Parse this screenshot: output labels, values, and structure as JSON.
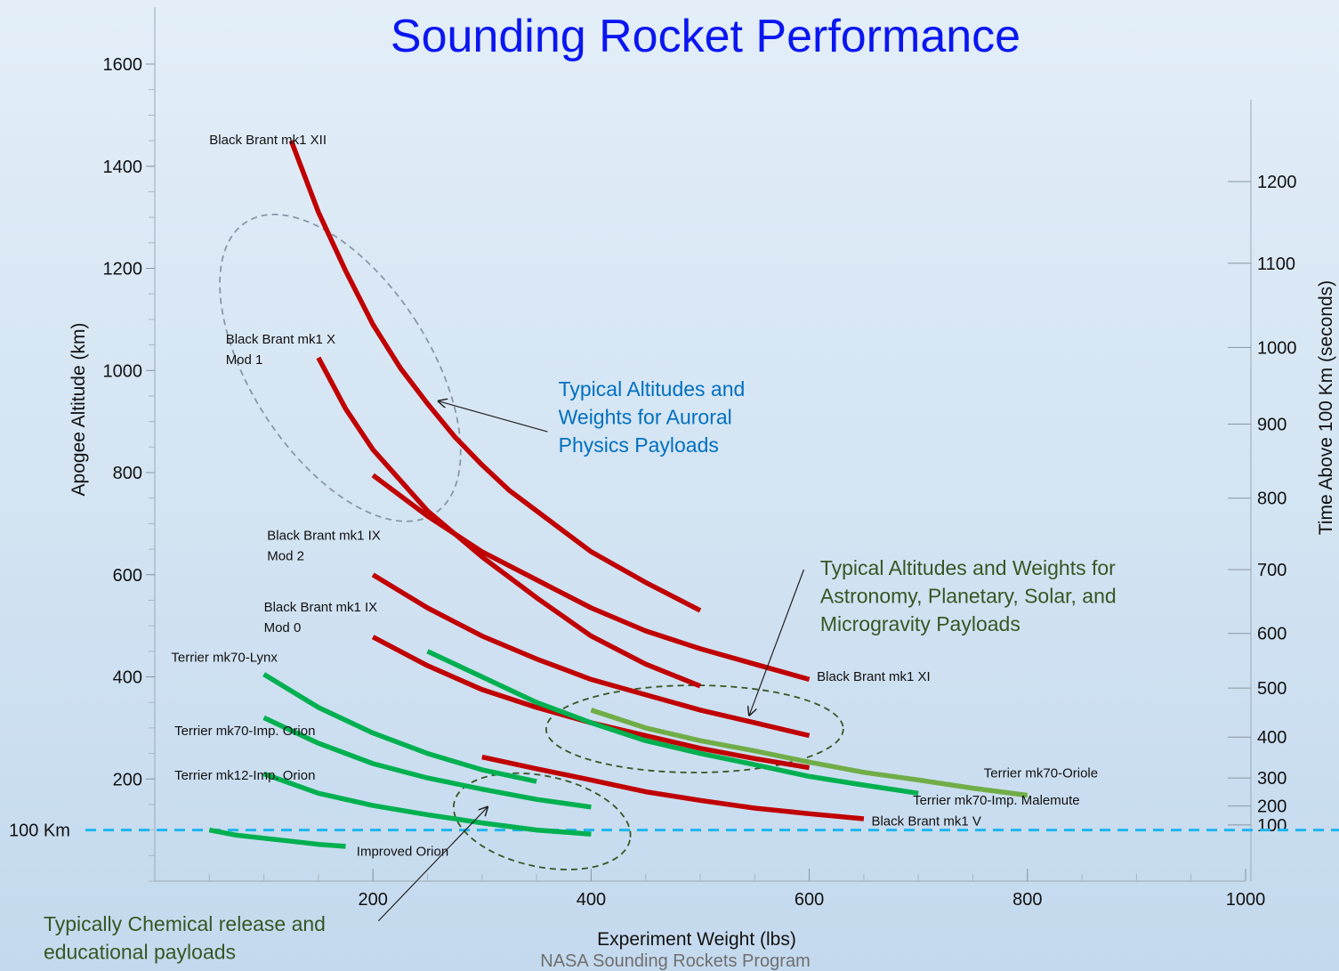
{
  "chart_data": {
    "type": "line",
    "title": "Sounding Rocket Performance",
    "xlabel": "Experiment Weight (lbs)",
    "ylabel": "Apogee Altitude (km)",
    "y2label": "Time Above 100 Km (seconds)",
    "xlim": [
      0,
      1000
    ],
    "ylim": [
      0,
      1600
    ],
    "x_ticks": [
      200,
      400,
      600,
      800,
      1000
    ],
    "y_ticks": [
      200,
      400,
      600,
      800,
      1000,
      1200,
      1400,
      1600
    ],
    "y2_ticks": [
      {
        "label": "1200",
        "altitude": 1370
      },
      {
        "label": "1100",
        "altitude": 1210
      },
      {
        "label": "1000",
        "altitude": 1045
      },
      {
        "label": "900",
        "altitude": 895
      },
      {
        "label": "800",
        "altitude": 750
      },
      {
        "label": "700",
        "altitude": 610
      },
      {
        "label": "600",
        "altitude": 485
      },
      {
        "label": "500",
        "altitude": 378
      },
      {
        "label": "400",
        "altitude": 282
      },
      {
        "label": "300",
        "altitude": 202
      },
      {
        "label": "200",
        "altitude": 147
      },
      {
        "label": "100",
        "altitude": 110
      }
    ],
    "reference_line": {
      "label": "100 Km",
      "altitude": 100,
      "color": "#1eb4ee"
    },
    "series": [
      {
        "name": "Black Brant mk1 XII",
        "color": "#c00000",
        "label_at": [
          50,
          1443
        ],
        "points": [
          [
            125,
            1450
          ],
          [
            150,
            1310
          ],
          [
            175,
            1195
          ],
          [
            200,
            1090
          ],
          [
            225,
            1005
          ],
          [
            250,
            935
          ],
          [
            275,
            870
          ],
          [
            300,
            815
          ],
          [
            325,
            765
          ],
          [
            350,
            725
          ],
          [
            400,
            645
          ],
          [
            450,
            585
          ],
          [
            500,
            530
          ]
        ]
      },
      {
        "name": "Black Brant mk1 X\nMod 1",
        "color": "#c00000",
        "label_at": [
          65,
          1053
        ],
        "points": [
          [
            150,
            1025
          ],
          [
            175,
            925
          ],
          [
            200,
            845
          ],
          [
            250,
            725
          ],
          [
            300,
            635
          ],
          [
            350,
            555
          ],
          [
            400,
            480
          ],
          [
            450,
            425
          ],
          [
            500,
            382
          ]
        ]
      },
      {
        "name": "Black Brant mk1 IX\nMod 2",
        "color": "#c00000",
        "label_at": [
          103,
          668
        ],
        "points": [
          [
            200,
            795
          ],
          [
            250,
            715
          ],
          [
            300,
            645
          ],
          [
            350,
            590
          ],
          [
            400,
            535
          ],
          [
            450,
            490
          ],
          [
            500,
            455
          ],
          [
            550,
            425
          ],
          [
            600,
            395
          ]
        ]
      },
      {
        "name": "Black Brant mk1 IX\nMod 0",
        "color": "#c00000",
        "label_at": [
          100,
          528
        ],
        "points": [
          [
            200,
            600
          ],
          [
            250,
            535
          ],
          [
            300,
            480
          ],
          [
            350,
            435
          ],
          [
            400,
            395
          ],
          [
            450,
            365
          ],
          [
            500,
            335
          ],
          [
            550,
            310
          ],
          [
            600,
            285
          ]
        ]
      },
      {
        "name": "Black Brant mk1 XI",
        "color": "#c00000",
        "label_at": [
          607,
          392
        ],
        "points": [
          [
            200,
            478
          ],
          [
            250,
            422
          ],
          [
            300,
            375
          ],
          [
            350,
            340
          ],
          [
            400,
            310
          ],
          [
            450,
            285
          ],
          [
            500,
            260
          ],
          [
            550,
            240
          ],
          [
            600,
            222
          ]
        ]
      },
      {
        "name": "Black Brant mk1 V",
        "color": "#c00000",
        "label_at": [
          657,
          109
        ],
        "points": [
          [
            300,
            243
          ],
          [
            350,
            220
          ],
          [
            400,
            198
          ],
          [
            450,
            175
          ],
          [
            500,
            158
          ],
          [
            550,
            143
          ],
          [
            600,
            132
          ],
          [
            650,
            122
          ]
        ]
      },
      {
        "name": "Terrier mk70-Lynx",
        "color": "#00b050",
        "label_at": [
          15,
          430
        ],
        "points": [
          [
            100,
            405
          ],
          [
            150,
            340
          ],
          [
            200,
            290
          ],
          [
            250,
            250
          ],
          [
            300,
            218
          ],
          [
            350,
            195
          ]
        ]
      },
      {
        "name": "Terrier mk70-Imp. Orion",
        "color": "#00b050",
        "label_at": [
          18,
          286
        ],
        "points": [
          [
            100,
            320
          ],
          [
            150,
            270
          ],
          [
            200,
            230
          ],
          [
            250,
            202
          ],
          [
            300,
            180
          ],
          [
            350,
            160
          ],
          [
            400,
            145
          ]
        ]
      },
      {
        "name": "Terrier mk12-Imp. Orion",
        "color": "#00b050",
        "label_at": [
          18,
          199
        ],
        "points": [
          [
            100,
            210
          ],
          [
            150,
            172
          ],
          [
            200,
            148
          ],
          [
            250,
            130
          ],
          [
            300,
            114
          ],
          [
            350,
            100
          ],
          [
            400,
            92
          ]
        ]
      },
      {
        "name": "Improved Orion",
        "color": "#00b050",
        "label_at": [
          185,
          50
        ],
        "points": [
          [
            50,
            100
          ],
          [
            75,
            90
          ],
          [
            100,
            84
          ],
          [
            125,
            78
          ],
          [
            150,
            72
          ],
          [
            175,
            68
          ]
        ]
      },
      {
        "name": "Terrier mk70-Imp. Malemute",
        "color": "#00b050",
        "label_at": [
          695,
          150
        ],
        "points": [
          [
            250,
            450
          ],
          [
            300,
            400
          ],
          [
            350,
            350
          ],
          [
            400,
            310
          ],
          [
            450,
            275
          ],
          [
            500,
            250
          ],
          [
            550,
            228
          ],
          [
            600,
            205
          ],
          [
            650,
            188
          ],
          [
            700,
            172
          ]
        ]
      },
      {
        "name": "Terrier mk70-Oriole",
        "color": "#70ad47",
        "label_at": [
          760,
          203
        ],
        "points": [
          [
            400,
            335
          ],
          [
            450,
            300
          ],
          [
            500,
            275
          ],
          [
            550,
            255
          ],
          [
            600,
            233
          ],
          [
            650,
            213
          ],
          [
            700,
            198
          ],
          [
            750,
            182
          ],
          [
            800,
            168
          ]
        ]
      }
    ],
    "annotations": [
      {
        "lines": [
          "Typical Altitudes and",
          "Weights for Auroral",
          "Physics Payloads"
        ],
        "color": "#0070c0",
        "anchor": [
          370,
          950
        ],
        "arrow_from": [
          360,
          880
        ],
        "arrow_to": [
          260,
          940
        ]
      },
      {
        "lines": [
          "Typical Altitudes and Weights for",
          "Astronomy, Planetary, Solar, and",
          "Microgravity Payloads"
        ],
        "color": "#375623",
        "anchor": [
          610,
          600
        ],
        "arrow_from": [
          595,
          610
        ],
        "arrow_to": [
          545,
          325
        ]
      },
      {
        "lines": [
          "Typically Chemical release and",
          "educational payloads"
        ],
        "color": "#375623",
        "anchor": [
          -102,
          -98
        ],
        "arrow_from": [
          205,
          -78
        ],
        "arrow_to": [
          305,
          145
        ]
      }
    ],
    "regions": [
      {
        "center": [
          170,
          1005
        ],
        "rx": 100,
        "ry": 195,
        "rotate": -33,
        "color": "#8a96a6"
      },
      {
        "center": [
          495,
          298
        ],
        "rx": 167,
        "ry": 49,
        "rotate": 0,
        "color": "#375623"
      },
      {
        "center": [
          355,
          117
        ],
        "rx": 101,
        "ry": 51,
        "rotate": 12,
        "color": "#375623"
      }
    ]
  },
  "footer": "NASA Sounding Rockets Program"
}
